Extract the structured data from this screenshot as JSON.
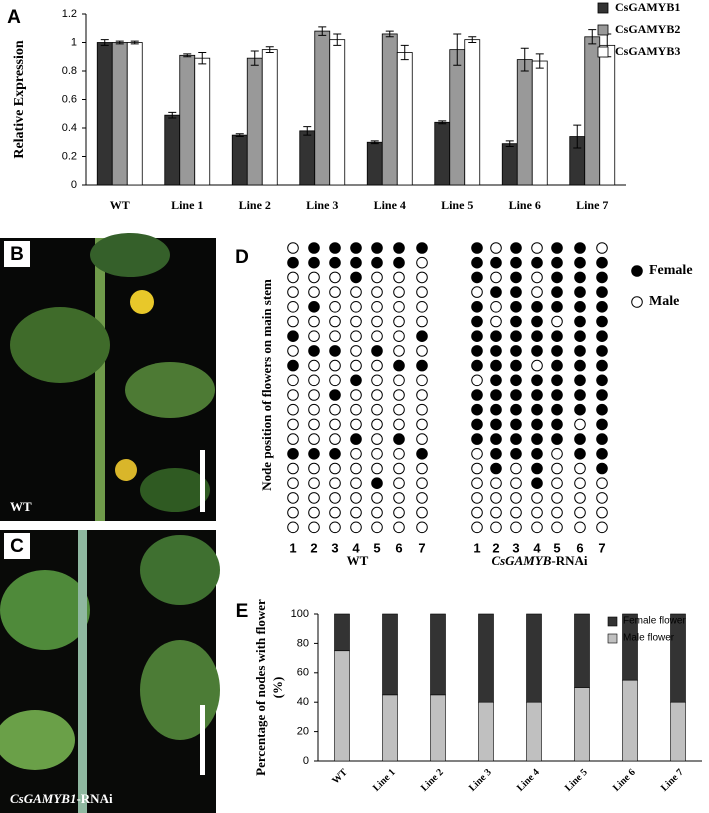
{
  "chart_data": [
    {
      "type": "bar",
      "panel": "A",
      "ylabel": "Relative Expression",
      "categories": [
        "WT",
        "Line 1",
        "Line 2",
        "Line 3",
        "Line 4",
        "Line 5",
        "Line 6",
        "Line 7"
      ],
      "series": [
        {
          "name": "CsGAMYB1",
          "color": "#333333",
          "values": [
            1.0,
            0.49,
            0.35,
            0.38,
            0.3,
            0.44,
            0.29,
            0.34
          ],
          "errors": [
            0.02,
            0.02,
            0.01,
            0.03,
            0.01,
            0.01,
            0.02,
            0.08
          ]
        },
        {
          "name": "CsGAMYB2",
          "color": "#999999",
          "values": [
            1.0,
            0.91,
            0.89,
            1.08,
            1.06,
            0.95,
            0.88,
            1.04
          ],
          "errors": [
            0.01,
            0.01,
            0.05,
            0.03,
            0.02,
            0.11,
            0.08,
            0.05
          ]
        },
        {
          "name": "CsGAMYB3",
          "color": "#ffffff",
          "values": [
            1.0,
            0.89,
            0.95,
            1.02,
            0.93,
            1.02,
            0.87,
            0.98
          ],
          "errors": [
            0.01,
            0.04,
            0.02,
            0.04,
            0.05,
            0.02,
            0.05,
            0.08
          ]
        }
      ],
      "ylim": [
        0,
        1.2
      ],
      "yticks": [
        0,
        0.2,
        0.4,
        0.6,
        0.8,
        1,
        1.2
      ],
      "legend": "upper right"
    },
    {
      "type": "dot-matrix",
      "panel": "D",
      "ylabel": "Node position of flowers on main stem",
      "legend": [
        {
          "name": "Female",
          "filled": true
        },
        {
          "name": "Male",
          "filled": false
        }
      ],
      "groups": [
        {
          "label_parts": [
            "WT"
          ],
          "columns": [
            "1",
            "2",
            "3",
            "4",
            "5",
            "6",
            "7"
          ],
          "rows": [
            [
              0,
              1,
              1,
              1,
              1,
              1,
              1
            ],
            [
              1,
              1,
              1,
              1,
              1,
              1,
              0
            ],
            [
              0,
              0,
              0,
              1,
              0,
              0,
              0
            ],
            [
              0,
              0,
              0,
              0,
              0,
              0,
              0
            ],
            [
              0,
              1,
              0,
              0,
              0,
              0,
              0
            ],
            [
              0,
              0,
              0,
              0,
              0,
              0,
              0
            ],
            [
              1,
              0,
              0,
              0,
              0,
              0,
              1
            ],
            [
              0,
              1,
              1,
              0,
              1,
              0,
              0
            ],
            [
              1,
              0,
              0,
              0,
              0,
              1,
              1
            ],
            [
              0,
              0,
              0,
              1,
              0,
              0,
              0
            ],
            [
              0,
              0,
              1,
              0,
              0,
              0,
              0
            ],
            [
              0,
              0,
              0,
              0,
              0,
              0,
              0
            ],
            [
              0,
              0,
              0,
              0,
              0,
              0,
              0
            ],
            [
              0,
              0,
              0,
              1,
              0,
              1,
              0
            ],
            [
              1,
              1,
              1,
              0,
              0,
              0,
              1
            ],
            [
              0,
              0,
              0,
              0,
              0,
              0,
              0
            ],
            [
              0,
              0,
              0,
              0,
              1,
              0,
              0
            ],
            [
              0,
              0,
              0,
              0,
              0,
              0,
              0
            ],
            [
              0,
              0,
              0,
              0,
              0,
              0,
              0
            ],
            [
              0,
              0,
              0,
              0,
              0,
              0,
              0
            ]
          ]
        },
        {
          "label_parts": [
            "CsGAMYB",
            "-RNAi"
          ],
          "columns": [
            "1",
            "2",
            "3",
            "4",
            "5",
            "6",
            "7"
          ],
          "rows": [
            [
              1,
              0,
              1,
              0,
              1,
              1,
              0
            ],
            [
              1,
              1,
              1,
              1,
              1,
              1,
              1
            ],
            [
              1,
              0,
              1,
              0,
              1,
              1,
              1
            ],
            [
              0,
              1,
              1,
              0,
              1,
              1,
              1
            ],
            [
              1,
              0,
              1,
              1,
              1,
              1,
              1
            ],
            [
              1,
              0,
              1,
              1,
              0,
              1,
              1
            ],
            [
              1,
              1,
              1,
              1,
              1,
              1,
              1
            ],
            [
              1,
              1,
              1,
              1,
              1,
              1,
              1
            ],
            [
              1,
              1,
              1,
              0,
              1,
              1,
              1
            ],
            [
              0,
              1,
              1,
              1,
              1,
              1,
              1
            ],
            [
              1,
              1,
              1,
              1,
              1,
              1,
              1
            ],
            [
              1,
              1,
              1,
              1,
              1,
              1,
              1
            ],
            [
              1,
              1,
              1,
              1,
              1,
              0,
              1
            ],
            [
              1,
              1,
              1,
              1,
              1,
              1,
              1
            ],
            [
              0,
              1,
              1,
              1,
              0,
              1,
              1
            ],
            [
              0,
              1,
              0,
              1,
              0,
              0,
              1
            ],
            [
              0,
              0,
              0,
              1,
              0,
              0,
              0
            ],
            [
              0,
              0,
              0,
              0,
              0,
              0,
              0
            ],
            [
              0,
              0,
              0,
              0,
              0,
              0,
              0
            ],
            [
              0,
              0,
              0,
              0,
              0,
              0,
              0
            ]
          ]
        }
      ]
    },
    {
      "type": "stacked-bar",
      "panel": "E",
      "ylabel_lines": [
        "Percentage of nodes with flower",
        "(%)"
      ],
      "categories": [
        "WT",
        "Line 1",
        "Line 2",
        "Line 3",
        "Line 4",
        "Line 5",
        "Line 6",
        "Line 7"
      ],
      "series": [
        {
          "name": "Female flower",
          "color": "#333333",
          "values": [
            25,
            55,
            55,
            60,
            60,
            50,
            45,
            60
          ]
        },
        {
          "name": "Male flower",
          "color": "#c0c0c0",
          "values": [
            75,
            45,
            45,
            40,
            40,
            50,
            55,
            40
          ]
        }
      ],
      "ylim": [
        0,
        100
      ],
      "yticks": [
        0,
        20,
        40,
        60,
        80,
        100
      ],
      "legend": "upper right"
    }
  ],
  "photos": [
    {
      "panel": "B",
      "caption_parts": [
        "WT"
      ]
    },
    {
      "panel": "C",
      "caption_parts": [
        "CsGAMYB1",
        "-RNAi"
      ]
    }
  ]
}
